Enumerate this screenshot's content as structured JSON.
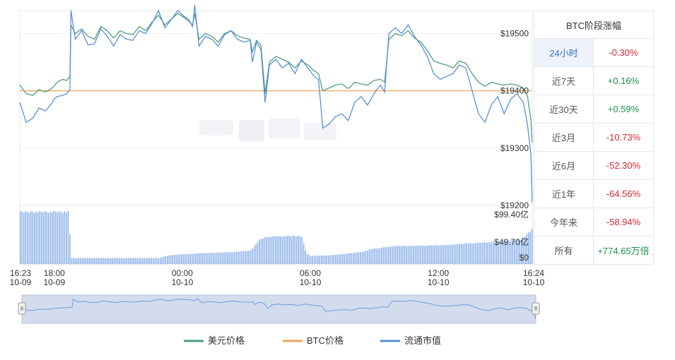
{
  "colors": {
    "usd_price": "#4e9e7c",
    "btc_price": "#f0a35e",
    "market_cap": "#5b8fd9",
    "up": "#1a8f4a",
    "down": "#d8262e",
    "navigator_fill": "#d2dced"
  },
  "watermark_visible": true,
  "legend": [
    {
      "label": "美元价格",
      "color": "#4e9e7c"
    },
    {
      "label": "BTC价格",
      "color": "#f0a35e"
    },
    {
      "label": "流通市值",
      "color": "#5b8fd9"
    }
  ],
  "table": {
    "title": "BTC阶段涨幅",
    "rows": [
      {
        "period": "24小时",
        "change": "-0.30%",
        "dir": "down",
        "active": true
      },
      {
        "period": "近7天",
        "change": "+0.16%",
        "dir": "up"
      },
      {
        "period": "近30天",
        "change": "+0.59%",
        "dir": "up"
      },
      {
        "period": "近3月",
        "change": "-10.73%",
        "dir": "down"
      },
      {
        "period": "近6月",
        "change": "-52.30%",
        "dir": "down"
      },
      {
        "period": "近1年",
        "change": "-64.56%",
        "dir": "down"
      },
      {
        "period": "今年来",
        "change": "-58.94%",
        "dir": "down"
      },
      {
        "period": "所有",
        "change": "+774.65万倍",
        "dir": "up"
      }
    ]
  },
  "chart_data": {
    "type": "line",
    "x_range": [
      "10-09 16:23",
      "10-10 16:24"
    ],
    "x_ticks": [
      {
        "time": "16:23",
        "date": "10-09",
        "hours": 0
      },
      {
        "time": "18:00",
        "date": "10-09",
        "hours": 1.617
      },
      {
        "time": "00:00",
        "date": "10-10",
        "hours": 7.617
      },
      {
        "time": "06:00",
        "date": "10-10",
        "hours": 13.617
      },
      {
        "time": "12:00",
        "date": "10-10",
        "hours": 19.617
      },
      {
        "time": "16:24",
        "date": "10-10",
        "hours": 24.017
      }
    ],
    "y_price": {
      "ticks": [
        "$19500",
        "$19400",
        "$19300",
        "$19200"
      ],
      "values": [
        19500,
        19400,
        19300,
        19200
      ],
      "range": [
        19200,
        19500
      ]
    },
    "y_volume": {
      "ticks": [
        "$99.40亿",
        "$49.70亿",
        "$0"
      ],
      "values": [
        99.4,
        49.7,
        0
      ],
      "unit": "亿"
    },
    "btc_price_reference": 19400,
    "series": [
      {
        "name": "美元价格",
        "points": [
          [
            0.0,
            19410
          ],
          [
            0.3,
            19395
          ],
          [
            0.6,
            19392
          ],
          [
            0.9,
            19402
          ],
          [
            1.2,
            19398
          ],
          [
            1.5,
            19404
          ],
          [
            1.6,
            19408
          ],
          [
            1.75,
            19415
          ],
          [
            2.0,
            19420
          ],
          [
            2.2,
            19418
          ],
          [
            2.35,
            19425
          ],
          [
            2.4,
            19515
          ],
          [
            2.6,
            19500
          ],
          [
            2.9,
            19508
          ],
          [
            3.2,
            19495
          ],
          [
            3.5,
            19490
          ],
          [
            3.8,
            19512
          ],
          [
            4.1,
            19505
          ],
          [
            4.4,
            19492
          ],
          [
            4.7,
            19505
          ],
          [
            5.0,
            19500
          ],
          [
            5.3,
            19498
          ],
          [
            5.6,
            19512
          ],
          [
            5.9,
            19505
          ],
          [
            6.2,
            19520
          ],
          [
            6.5,
            19532
          ],
          [
            6.8,
            19515
          ],
          [
            7.1,
            19525
          ],
          [
            7.4,
            19535
          ],
          [
            7.7,
            19528
          ],
          [
            7.9,
            19522
          ],
          [
            8.1,
            19515
          ],
          [
            8.2,
            19535
          ],
          [
            8.4,
            19490
          ],
          [
            8.7,
            19500
          ],
          [
            9.0,
            19495
          ],
          [
            9.3,
            19485
          ],
          [
            9.6,
            19500
          ],
          [
            9.9,
            19505
          ],
          [
            10.2,
            19496
          ],
          [
            10.5,
            19492
          ],
          [
            10.8,
            19490
          ],
          [
            10.9,
            19468
          ],
          [
            11.1,
            19488
          ],
          [
            11.3,
            19480
          ],
          [
            11.5,
            19395
          ],
          [
            11.7,
            19450
          ],
          [
            12.0,
            19460
          ],
          [
            12.3,
            19455
          ],
          [
            12.6,
            19450
          ],
          [
            12.9,
            19440
          ],
          [
            13.2,
            19452
          ],
          [
            13.5,
            19445
          ],
          [
            13.8,
            19435
          ],
          [
            14.0,
            19430
          ],
          [
            14.2,
            19400
          ],
          [
            14.5,
            19405
          ],
          [
            14.8,
            19410
          ],
          [
            15.1,
            19412
          ],
          [
            15.4,
            19404
          ],
          [
            15.7,
            19415
          ],
          [
            16.0,
            19412
          ],
          [
            16.3,
            19410
          ],
          [
            16.6,
            19418
          ],
          [
            16.9,
            19420
          ],
          [
            17.1,
            19415
          ],
          [
            17.3,
            19490
          ],
          [
            17.6,
            19500
          ],
          [
            17.9,
            19496
          ],
          [
            18.2,
            19505
          ],
          [
            18.5,
            19492
          ],
          [
            18.8,
            19485
          ],
          [
            19.1,
            19470
          ],
          [
            19.4,
            19452
          ],
          [
            19.7,
            19448
          ],
          [
            20.0,
            19445
          ],
          [
            20.3,
            19440
          ],
          [
            20.6,
            19452
          ],
          [
            20.9,
            19448
          ],
          [
            21.2,
            19430
          ],
          [
            21.5,
            19415
          ],
          [
            21.8,
            19408
          ],
          [
            22.1,
            19415
          ],
          [
            22.4,
            19412
          ],
          [
            22.7,
            19410
          ],
          [
            23.0,
            19412
          ],
          [
            23.3,
            19410
          ],
          [
            23.6,
            19405
          ],
          [
            23.8,
            19390
          ],
          [
            23.95,
            19350
          ],
          [
            24.017,
            19310
          ]
        ]
      },
      {
        "name": "BTC价格",
        "points": [
          [
            0.0,
            19400
          ],
          [
            24.017,
            19400
          ]
        ]
      },
      {
        "name": "流通市值",
        "points": [
          [
            0.0,
            19380
          ],
          [
            0.3,
            19345
          ],
          [
            0.6,
            19352
          ],
          [
            0.9,
            19370
          ],
          [
            1.2,
            19365
          ],
          [
            1.5,
            19378
          ],
          [
            1.6,
            19385
          ],
          [
            1.75,
            19390
          ],
          [
            2.0,
            19392
          ],
          [
            2.2,
            19395
          ],
          [
            2.35,
            19402
          ],
          [
            2.4,
            19540
          ],
          [
            2.6,
            19490
          ],
          [
            2.9,
            19505
          ],
          [
            3.2,
            19480
          ],
          [
            3.5,
            19482
          ],
          [
            3.8,
            19508
          ],
          [
            4.1,
            19495
          ],
          [
            4.4,
            19478
          ],
          [
            4.7,
            19498
          ],
          [
            5.0,
            19490
          ],
          [
            5.3,
            19488
          ],
          [
            5.6,
            19505
          ],
          [
            5.9,
            19500
          ],
          [
            6.2,
            19518
          ],
          [
            6.5,
            19540
          ],
          [
            6.8,
            19510
          ],
          [
            7.1,
            19524
          ],
          [
            7.4,
            19540
          ],
          [
            7.7,
            19530
          ],
          [
            7.9,
            19525
          ],
          [
            8.1,
            19512
          ],
          [
            8.2,
            19550
          ],
          [
            8.4,
            19478
          ],
          [
            8.7,
            19495
          ],
          [
            9.0,
            19490
          ],
          [
            9.3,
            19478
          ],
          [
            9.6,
            19498
          ],
          [
            9.9,
            19505
          ],
          [
            10.2,
            19490
          ],
          [
            10.5,
            19485
          ],
          [
            10.8,
            19488
          ],
          [
            10.9,
            19450
          ],
          [
            11.1,
            19485
          ],
          [
            11.3,
            19472
          ],
          [
            11.5,
            19380
          ],
          [
            11.7,
            19445
          ],
          [
            12.0,
            19455
          ],
          [
            12.3,
            19440
          ],
          [
            12.6,
            19448
          ],
          [
            12.9,
            19430
          ],
          [
            13.2,
            19455
          ],
          [
            13.5,
            19440
          ],
          [
            13.8,
            19425
          ],
          [
            14.0,
            19420
          ],
          [
            14.2,
            19335
          ],
          [
            14.5,
            19342
          ],
          [
            14.8,
            19355
          ],
          [
            15.1,
            19360
          ],
          [
            15.4,
            19348
          ],
          [
            15.7,
            19380
          ],
          [
            16.0,
            19390
          ],
          [
            16.3,
            19375
          ],
          [
            16.6,
            19395
          ],
          [
            16.9,
            19410
          ],
          [
            17.1,
            19398
          ],
          [
            17.3,
            19500
          ],
          [
            17.6,
            19510
          ],
          [
            17.9,
            19500
          ],
          [
            18.2,
            19515
          ],
          [
            18.5,
            19495
          ],
          [
            18.8,
            19480
          ],
          [
            19.1,
            19460
          ],
          [
            19.4,
            19430
          ],
          [
            19.7,
            19420
          ],
          [
            20.0,
            19425
          ],
          [
            20.3,
            19430
          ],
          [
            20.6,
            19445
          ],
          [
            20.9,
            19440
          ],
          [
            21.2,
            19400
          ],
          [
            21.5,
            19360
          ],
          [
            21.8,
            19345
          ],
          [
            22.1,
            19375
          ],
          [
            22.4,
            19390
          ],
          [
            22.7,
            19360
          ],
          [
            23.0,
            19385
          ],
          [
            23.3,
            19395
          ],
          [
            23.6,
            19380
          ],
          [
            23.8,
            19340
          ],
          [
            23.95,
            19290
          ],
          [
            24.017,
            19205
          ]
        ]
      }
    ],
    "volume_profile": [
      [
        0.0,
        96
      ],
      [
        2.3,
        96
      ],
      [
        2.35,
        11
      ],
      [
        6.5,
        11
      ],
      [
        7.0,
        16
      ],
      [
        8.5,
        20
      ],
      [
        10.0,
        22
      ],
      [
        10.8,
        25
      ],
      [
        11.2,
        44
      ],
      [
        11.5,
        50
      ],
      [
        13.0,
        52
      ],
      [
        13.2,
        50
      ],
      [
        13.4,
        20
      ],
      [
        13.6,
        15
      ],
      [
        14.5,
        16
      ],
      [
        16.0,
        22
      ],
      [
        16.5,
        28
      ],
      [
        17.5,
        33
      ],
      [
        19.0,
        34
      ],
      [
        20.0,
        35
      ],
      [
        21.0,
        38
      ],
      [
        22.0,
        40
      ],
      [
        23.5,
        45
      ],
      [
        24.017,
        66
      ]
    ],
    "grid": true,
    "legend_position": "bottom-center"
  }
}
